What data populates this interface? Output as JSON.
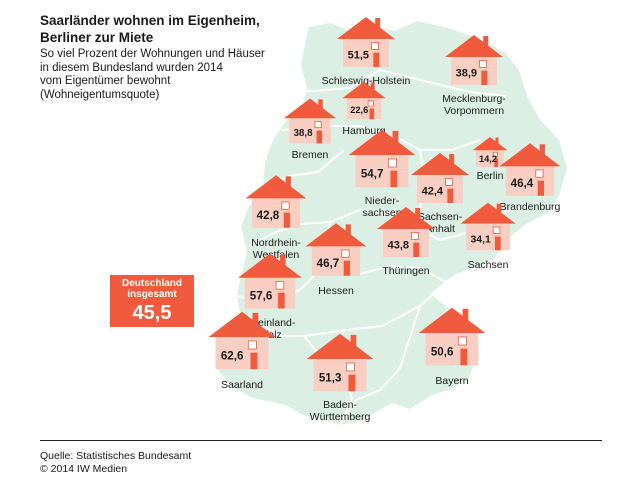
{
  "title_line1": "Saarländer wohnen im Eigenheim,",
  "title_line2": "Berliner zur Miete",
  "subtitle_lines": [
    "So viel Prozent der Wohnungen und Häuser",
    "in diesem Bundesland wurden 2014",
    "vom Eigentümer bewohnt",
    "(Wohneigentumsquote)"
  ],
  "total": {
    "label_line1": "Deutschland",
    "label_line2": "insgesamt",
    "value": "45,5"
  },
  "source_line1": "Quelle: Statistisches Bundesamt",
  "source_line2": "© 2014 IW Medien",
  "colors": {
    "map_fill": "#dcefe5",
    "map_border": "#ffffff",
    "roof": "#ef5b3c",
    "house_wall": "#f8cfc2",
    "accent": "#ef5b3c",
    "text": "#1a1a1a"
  },
  "icon": "house-icon",
  "states": [
    {
      "id": "schleswig-holstein",
      "value": "51,5",
      "value_num": 51.5,
      "name": [
        "Schleswig-Holstein"
      ]
    },
    {
      "id": "mecklenburg-vorpommern",
      "value": "38,9",
      "value_num": 38.9,
      "name": [
        "Mecklenburg-",
        "Vorpommern"
      ]
    },
    {
      "id": "hamburg",
      "value": "22,6",
      "value_num": 22.6,
      "name": [
        "Hamburg"
      ]
    },
    {
      "id": "bremen",
      "value": "38,8",
      "value_num": 38.8,
      "name": [
        "Bremen"
      ]
    },
    {
      "id": "niedersachsen",
      "value": "54,7",
      "value_num": 54.7,
      "name": [
        "Nieder-",
        "sachsen"
      ]
    },
    {
      "id": "sachsen-anhalt",
      "value": "42,4",
      "value_num": 42.4,
      "name": [
        "Sachsen-",
        "Anhalt"
      ]
    },
    {
      "id": "berlin",
      "value": "14,2",
      "value_num": 14.2,
      "name": [
        "Berlin"
      ]
    },
    {
      "id": "brandenburg",
      "value": "46,4",
      "value_num": 46.4,
      "name": [
        "Brandenburg"
      ]
    },
    {
      "id": "nordrhein-westfalen",
      "value": "42,8",
      "value_num": 42.8,
      "name": [
        "Nordrhein-",
        "Westfalen"
      ]
    },
    {
      "id": "hessen",
      "value": "46,7",
      "value_num": 46.7,
      "name": [
        "Hessen"
      ]
    },
    {
      "id": "thueringen",
      "value": "43,8",
      "value_num": 43.8,
      "name": [
        "Thüringen"
      ]
    },
    {
      "id": "sachsen",
      "value": "34,1",
      "value_num": 34.1,
      "name": [
        "Sachsen"
      ]
    },
    {
      "id": "rheinland-pfalz",
      "value": "57,6",
      "value_num": 57.6,
      "name": [
        "Rheinland-",
        "Pfalz"
      ]
    },
    {
      "id": "saarland",
      "value": "62,6",
      "value_num": 62.6,
      "name": [
        "Saarland"
      ]
    },
    {
      "id": "baden-wuerttemberg",
      "value": "51,3",
      "value_num": 51.3,
      "name": [
        "Baden-",
        "Württemberg"
      ]
    },
    {
      "id": "bayern",
      "value": "50,6",
      "value_num": 50.6,
      "name": [
        "Bayern"
      ]
    }
  ]
}
